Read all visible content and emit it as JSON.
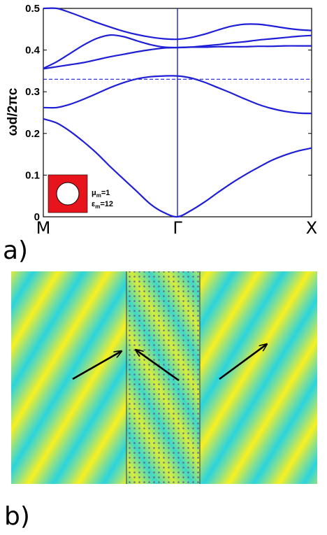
{
  "panel_a_label": "a)",
  "panel_b_label": "b)",
  "inset": {
    "mu_symbol": "μ",
    "mu_sub": "m",
    "mu_value": "=1",
    "eps_symbol": "ε",
    "eps_sub": "m",
    "eps_value": "=12",
    "square_color": "#e8141c"
  },
  "chart_data": {
    "type": "line",
    "ylabel": "ωd/2πc",
    "ylim": [
      0,
      0.5
    ],
    "yticks": [
      0,
      0.1,
      0.2,
      0.3,
      0.4,
      0.5
    ],
    "xticks": [
      "M",
      "Γ",
      "X"
    ],
    "grid": false,
    "line_color": "#1f1fd6",
    "hline": 0.33,
    "band_x": [
      0,
      0.1,
      0.2,
      0.3,
      0.4,
      0.5,
      0.6,
      0.7,
      0.8,
      0.9,
      1.0,
      1.1,
      1.2,
      1.3,
      1.4,
      1.5,
      1.6,
      1.7,
      1.8,
      1.9,
      2.0
    ],
    "series": [
      {
        "values": [
          0.235,
          0.225,
          0.205,
          0.18,
          0.152,
          0.12,
          0.09,
          0.06,
          0.03,
          0.01,
          0.0,
          0.015,
          0.035,
          0.058,
          0.08,
          0.1,
          0.118,
          0.135,
          0.148,
          0.158,
          0.165
        ]
      },
      {
        "values": [
          0.262,
          0.262,
          0.27,
          0.282,
          0.296,
          0.31,
          0.322,
          0.331,
          0.336,
          0.338,
          0.338,
          0.333,
          0.323,
          0.31,
          0.297,
          0.283,
          0.27,
          0.26,
          0.253,
          0.249,
          0.248
        ]
      },
      {
        "values": [
          0.355,
          0.36,
          0.365,
          0.37,
          0.377,
          0.384,
          0.39,
          0.396,
          0.401,
          0.405,
          0.406,
          0.407,
          0.407,
          0.408,
          0.408,
          0.408,
          0.409,
          0.409,
          0.41,
          0.41,
          0.41
        ]
      },
      {
        "values": [
          0.356,
          0.372,
          0.392,
          0.412,
          0.428,
          0.436,
          0.432,
          0.422,
          0.413,
          0.407,
          0.406,
          0.407,
          0.41,
          0.413,
          0.417,
          0.42,
          0.424,
          0.427,
          0.43,
          0.433,
          0.435
        ]
      },
      {
        "values": [
          0.5,
          0.5,
          0.49,
          0.478,
          0.466,
          0.455,
          0.445,
          0.437,
          0.431,
          0.427,
          0.426,
          0.43,
          0.438,
          0.448,
          0.457,
          0.462,
          0.462,
          0.458,
          0.453,
          0.449,
          0.447
        ]
      }
    ]
  },
  "field_map": {
    "colors": [
      "#2ad4de",
      "#f8f020"
    ],
    "frame_color": "#000000",
    "arrows": 3
  }
}
